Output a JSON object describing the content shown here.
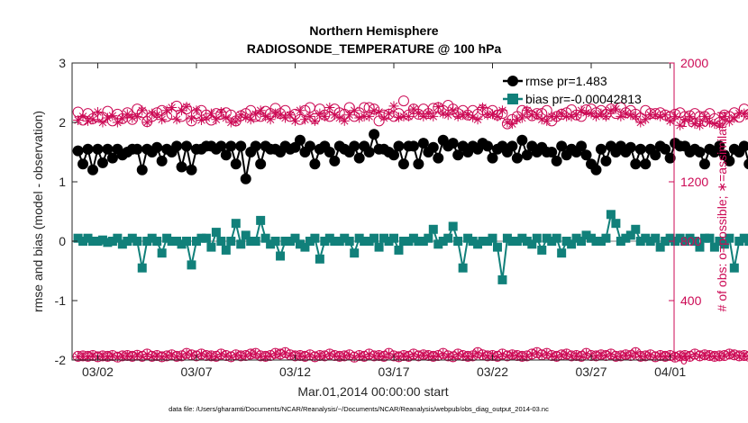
{
  "chart_data": {
    "type": "line",
    "title": [
      "Northern Hemisphere",
      "RADIOSONDE_TEMPERATURE @ 100 hPa"
    ],
    "xlabel": "Mar.01,2014 00:00:00 start",
    "ylabel_left": "rmse and bias (model - observation)",
    "ylabel_right": "# of obs: o=possible; ∗=assimilated",
    "footnote": "data file: /Users/gharamti/Documents/NCAR/Reanalysis/~/Documents/NCAR/Reanalysis/webpub/obs_diag_output_2014-03.nc",
    "xlim": [
      0.7,
      31.2
    ],
    "ylim_left": [
      -2,
      3
    ],
    "ylim_right": [
      0,
      2000
    ],
    "x_ticks": [
      {
        "value": 2,
        "label": "03/02"
      },
      {
        "value": 7,
        "label": "03/07"
      },
      {
        "value": 12,
        "label": "03/12"
      },
      {
        "value": 17,
        "label": "03/17"
      },
      {
        "value": 22,
        "label": "03/22"
      },
      {
        "value": 27,
        "label": "03/27"
      },
      {
        "value": 31,
        "label": "04/01"
      }
    ],
    "y_left_ticks": [
      -2,
      -1,
      0,
      1,
      2,
      3
    ],
    "y_right_ticks": [
      0,
      400,
      800,
      1200,
      1600,
      2000
    ],
    "reference_line": 0,
    "colors": {
      "rmse": "#000000",
      "bias": "#11807a",
      "obs": "#cc0a55",
      "zero": "#bfbfbf",
      "axis": "#262626"
    },
    "legend": [
      {
        "series": "rmse",
        "label": "rmse pr=1.483"
      },
      {
        "series": "bias",
        "label": "bias pr=-0.00042813"
      }
    ],
    "series": [
      {
        "name": "rmse",
        "axis": "left",
        "marker": "circle",
        "start": 1.0,
        "step": 0.25,
        "values": [
          1.52,
          1.3,
          1.55,
          1.2,
          1.55,
          1.32,
          1.55,
          1.4,
          1.55,
          1.45,
          1.5,
          1.55,
          1.55,
          1.2,
          1.55,
          1.5,
          1.58,
          1.35,
          1.55,
          1.5,
          1.6,
          1.25,
          1.6,
          1.2,
          1.55,
          1.55,
          1.6,
          1.6,
          1.55,
          1.6,
          1.45,
          1.6,
          1.3,
          1.6,
          1.05,
          1.5,
          1.6,
          1.3,
          1.6,
          1.55,
          1.55,
          1.5,
          1.6,
          1.55,
          1.58,
          1.7,
          1.5,
          1.6,
          1.3,
          1.55,
          1.6,
          1.5,
          1.35,
          1.6,
          1.55,
          1.5,
          1.6,
          1.4,
          1.6,
          1.5,
          1.8,
          1.55,
          1.55,
          1.5,
          1.45,
          1.6,
          1.3,
          1.6,
          1.6,
          1.3,
          1.65,
          1.5,
          1.58,
          1.4,
          1.7,
          1.6,
          1.65,
          1.45,
          1.6,
          1.5,
          1.6,
          1.55,
          1.65,
          1.6,
          1.4,
          1.55,
          1.6,
          1.5,
          1.6,
          1.4,
          1.7,
          1.45,
          1.6,
          1.5,
          1.58,
          1.5,
          1.5,
          1.35,
          1.6,
          1.45,
          1.55,
          1.5,
          1.6,
          1.45,
          1.3,
          1.2,
          1.55,
          1.35,
          1.6,
          1.5,
          1.6,
          1.5,
          1.58,
          1.3,
          1.55,
          1.3,
          1.55,
          1.45,
          1.6,
          1.55,
          1.4,
          1.65,
          1.6,
          1.6,
          1.5,
          1.55,
          1.5,
          1.3,
          1.55,
          1.5,
          1.6,
          1.45,
          1.35,
          1.55,
          1.5,
          1.6,
          1.3,
          1.6,
          1.5,
          1.55,
          1.6,
          1.55,
          1.4,
          1.6,
          1.6,
          1.45,
          1.55,
          1.6,
          1.0,
          1.5,
          1.5,
          1.45,
          1.5,
          1.35,
          1.45,
          1.4,
          1.4
        ]
      },
      {
        "name": "bias",
        "axis": "left",
        "marker": "square",
        "start": 1.0,
        "step": 0.25,
        "values": [
          0.05,
          0.0,
          0.05,
          0.0,
          0.0,
          0.02,
          -0.02,
          0.0,
          0.05,
          -0.05,
          0.0,
          0.05,
          0.0,
          -0.45,
          0.0,
          0.05,
          0.0,
          -0.2,
          0.05,
          0.0,
          0.0,
          -0.05,
          0.0,
          -0.4,
          0.0,
          0.05,
          0.05,
          -0.1,
          0.15,
          0.0,
          -0.15,
          0.0,
          0.3,
          -0.05,
          0.1,
          0.0,
          0.0,
          0.35,
          0.05,
          -0.05,
          0.0,
          -0.25,
          0.0,
          0.0,
          0.05,
          -0.05,
          -0.1,
          0.0,
          0.05,
          -0.3,
          0.0,
          0.05,
          0.0,
          0.0,
          0.05,
          0.0,
          -0.2,
          0.05,
          0.0,
          0.0,
          0.05,
          -0.1,
          0.05,
          0.0,
          0.05,
          -0.15,
          0.0,
          0.0,
          0.05,
          0.0,
          0.0,
          0.05,
          0.2,
          -0.05,
          0.0,
          0.05,
          0.25,
          0.0,
          -0.45,
          0.05,
          0.0,
          -0.05,
          0.0,
          0.0,
          0.05,
          -0.1,
          -0.65,
          0.05,
          0.0,
          0.0,
          0.05,
          0.0,
          -0.05,
          0.05,
          -0.15,
          0.05,
          0.0,
          0.05,
          -0.2,
          0.0,
          -0.05,
          0.05,
          0.0,
          0.1,
          0.05,
          0.0,
          0.0,
          0.05,
          0.45,
          0.3,
          0.0,
          0.05,
          0.1,
          0.2,
          0.0,
          0.05,
          0.0,
          0.05,
          -0.1,
          0.0,
          0.05,
          0.0,
          0.05,
          0.0,
          0.05,
          0.0,
          -0.1,
          0.05,
          0.05,
          -0.1,
          0.0,
          -0.05,
          0.05,
          -0.45,
          0.0,
          0.05,
          0.0,
          -0.35,
          0.05,
          -0.15,
          0.0,
          0.05,
          0.15,
          -0.05,
          0.0,
          0.05,
          0.3,
          0.0,
          -0.05,
          0.0,
          0.05,
          -0.25,
          0.0,
          0.05,
          0.0,
          -0.1,
          0.0,
          -0.05,
          0.1,
          0.0,
          0.0,
          -0.05,
          -0.15,
          0.05,
          0.0,
          0.0,
          -0.15,
          0.0,
          0.0,
          -0.35,
          -0.05,
          0.0,
          0.05,
          0.0,
          0.0,
          -0.1,
          0.0,
          -0.3,
          -0.1,
          -0.05,
          -0.05,
          0.0,
          -0.1,
          -0.15,
          -0.05,
          -0.05,
          -0.1,
          0.0
        ]
      },
      {
        "name": "obs_possible",
        "axis": "right",
        "marker": "open-circle",
        "start": 1.0,
        "step": 0.25,
        "values": [
          1670,
          1615,
          1660,
          1625,
          1640,
          1635,
          1675,
          1610,
          1655,
          1625,
          1665,
          1620,
          1690,
          1665,
          1605,
          1640,
          1665,
          1680,
          1640,
          1655,
          1710,
          1640,
          1690,
          1610,
          1660,
          1680,
          1650,
          1615,
          1660,
          1655,
          1665,
          1650,
          1610,
          1645,
          1660,
          1680,
          1640,
          1640,
          1675,
          1660,
          1695,
          1660,
          1680,
          1640,
          1655,
          1620,
          1680,
          1700,
          1625,
          1690,
          1650,
          1640,
          1690,
          1665,
          1655,
          1700,
          1640,
          1665,
          1700,
          1700,
          1690,
          1610,
          1650,
          1655,
          1640,
          1660,
          1745,
          1650,
          1690,
          1655,
          1690,
          1660,
          1695,
          1700,
          1680,
          1715,
          1690,
          1660,
          1680,
          1650,
          1680,
          1655,
          1685,
          1665,
          1680,
          1650,
          1660,
          1590,
          1620,
          1640,
          1680,
          1670,
          1645,
          1660,
          1660,
          1680,
          1610,
          1640,
          1655,
          1665,
          1685,
          1650,
          1640,
          1685,
          1690,
          1665,
          1680,
          1655,
          1690,
          1660,
          1700,
          1665,
          1680,
          1655,
          1630,
          1680,
          1660,
          1660,
          1665,
          1650,
          1640,
          1655,
          1665,
          1640,
          1645,
          1660,
          1640,
          1640,
          1660,
          1625,
          1600,
          1650,
          1640,
          1665,
          1635,
          1690,
          1655,
          1640,
          1665,
          1660,
          1640,
          1655,
          1680,
          1600,
          1640,
          1660,
          1605,
          1620,
          1665,
          1645
        ]
      },
      {
        "name": "obs_assimilated",
        "axis": "right",
        "marker": "asterisk",
        "start": 1.0,
        "step": 0.25,
        "values": [
          1615,
          1640,
          1610,
          1620,
          1670,
          1600,
          1630,
          1645,
          1600,
          1625,
          1655,
          1630,
          1640,
          1680,
          1600,
          1660,
          1650,
          1620,
          1680,
          1700,
          1620,
          1680,
          1705,
          1625,
          1680,
          1615,
          1630,
          1660,
          1620,
          1670,
          1630,
          1600,
          1605,
          1650,
          1635,
          1620,
          1655,
          1680,
          1640,
          1620,
          1660,
          1650,
          1630,
          1650,
          1610,
          1680,
          1620,
          1640,
          1610,
          1660,
          1640,
          1700,
          1650,
          1630,
          1610,
          1650,
          1680,
          1630,
          1640,
          1640,
          1680,
          1670,
          1630,
          1660,
          1710,
          1635,
          1640,
          1640,
          1690,
          1660,
          1640,
          1660,
          1640,
          1705,
          1660,
          1650,
          1680,
          1640,
          1650,
          1650,
          1635,
          1620,
          1700,
          1650,
          1655,
          1640,
          1680,
          1600,
          1590,
          1620,
          1630,
          1680,
          1650,
          1650,
          1620,
          1610,
          1640,
          1640,
          1660,
          1640,
          1640,
          1650,
          1680,
          1665,
          1660,
          1640,
          1660,
          1640,
          1680,
          1690,
          1640,
          1660,
          1650,
          1640,
          1600,
          1620,
          1650,
          1650,
          1640,
          1650,
          1610,
          1640,
          1580,
          1620,
          1640,
          1590,
          1580,
          1640,
          1600,
          1590,
          1580,
          1640,
          1605,
          1630,
          1660,
          1660,
          1640,
          1620,
          1640,
          1600,
          1620,
          1600,
          1620,
          1600,
          1600,
          1650,
          1640,
          1620,
          1590,
          1640,
          1640,
          1600,
          1680,
          1610,
          1620,
          1600,
          1640,
          1660,
          1620,
          1600,
          1620,
          1580
        ]
      },
      {
        "name": "obs_bottom_possible",
        "axis": "right",
        "marker": "open-circle",
        "start": 1.0,
        "step": 0.25,
        "values": [
          25,
          28,
          25,
          30,
          22,
          28,
          25,
          30,
          20,
          28,
          30,
          25,
          32,
          25,
          40,
          25,
          30,
          22,
          28,
          35,
          25,
          28,
          45,
          35,
          28,
          40,
          30,
          28,
          25,
          40,
          30,
          22,
          35,
          28,
          30,
          40,
          45,
          28,
          25,
          30,
          45,
          40,
          50,
          35,
          28,
          30,
          25,
          35,
          22,
          30,
          28,
          40,
          30,
          25,
          28,
          35,
          20,
          30,
          25,
          40,
          28,
          30,
          25,
          45,
          28,
          22,
          30,
          25,
          40,
          28,
          35,
          30,
          25,
          30,
          45,
          28,
          22,
          40,
          30,
          25,
          28,
          50,
          35,
          28,
          30,
          25,
          40,
          28,
          35,
          30,
          25,
          28,
          40,
          50,
          35,
          45,
          30,
          25,
          35,
          40,
          28,
          30,
          25,
          45,
          30,
          28,
          35,
          30,
          40,
          25,
          28,
          35,
          30,
          50,
          25,
          28,
          35,
          22,
          30,
          25,
          30,
          20,
          28,
          30,
          25,
          40,
          28,
          35,
          30,
          25,
          28,
          30,
          40,
          35,
          28,
          30,
          25,
          28,
          30,
          25,
          35,
          40,
          30,
          25,
          25,
          28,
          30,
          22,
          28,
          15,
          20,
          25,
          18,
          12,
          5
        ]
      },
      {
        "name": "obs_bottom_assimilated",
        "axis": "right",
        "marker": "asterisk",
        "start": 1.0,
        "step": 0.25,
        "values": [
          22,
          25,
          22,
          28,
          20,
          25,
          22,
          28,
          18,
          25,
          28,
          22,
          30,
          22,
          38,
          22,
          28,
          20,
          25,
          32,
          22,
          25,
          42,
          32,
          25,
          38,
          28,
          25,
          22,
          38,
          28,
          20,
          32,
          25,
          28,
          38,
          42,
          25,
          22,
          28,
          42,
          38,
          48,
          32,
          25,
          28,
          22,
          32,
          20,
          28,
          25,
          38,
          28,
          22,
          25,
          32,
          18,
          28,
          22,
          38,
          25,
          28,
          22,
          42,
          25,
          20,
          28,
          22,
          38,
          25,
          32,
          28,
          22,
          28,
          42,
          25,
          20,
          38,
          28,
          22,
          25,
          48,
          32,
          25,
          28,
          22,
          38,
          25,
          32,
          28,
          22,
          25,
          38,
          48,
          32,
          42,
          28,
          22,
          32,
          38,
          25,
          28,
          22,
          42,
          28,
          25,
          32,
          28,
          38,
          22,
          25,
          32,
          28,
          48,
          22,
          25,
          32,
          20,
          28,
          22,
          28,
          18,
          25,
          28,
          22,
          38,
          25,
          32,
          28,
          22,
          25,
          28,
          38,
          32,
          25,
          28,
          22,
          25,
          28,
          22,
          32,
          38,
          28,
          22,
          22,
          25,
          28,
          20,
          25,
          12,
          18,
          22,
          15,
          10,
          3
        ]
      }
    ]
  }
}
